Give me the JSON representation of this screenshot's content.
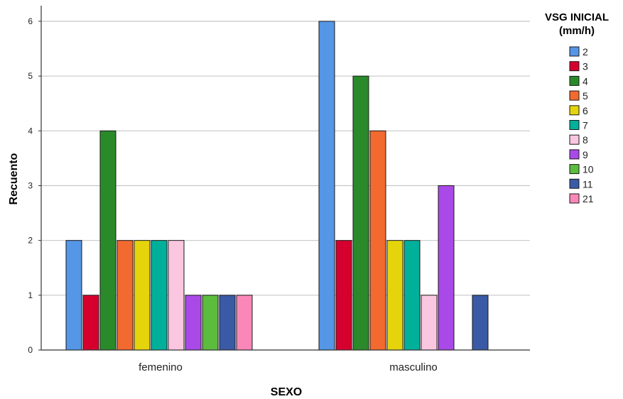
{
  "chart_data": {
    "type": "bar",
    "xlabel": "SEXO",
    "ylabel": "Recuento",
    "ylim": [
      0,
      6
    ],
    "yticks": [
      0,
      1,
      2,
      3,
      4,
      5,
      6
    ],
    "grid": true,
    "legend_title": [
      "VSG INICIAL",
      "(mm/h)"
    ],
    "legend_position": "right",
    "categories": [
      "femenino",
      "masculino"
    ],
    "series": [
      {
        "name": "2",
        "color": "#5596e6",
        "values": [
          2,
          6
        ]
      },
      {
        "name": "3",
        "color": "#d6002e",
        "values": [
          1,
          2
        ]
      },
      {
        "name": "4",
        "color": "#2a8a2a",
        "values": [
          4,
          5
        ]
      },
      {
        "name": "5",
        "color": "#f26a30",
        "values": [
          2,
          4
        ]
      },
      {
        "name": "6",
        "color": "#e5d40c",
        "values": [
          2,
          2
        ]
      },
      {
        "name": "7",
        "color": "#00b09b",
        "values": [
          2,
          2
        ]
      },
      {
        "name": "8",
        "color": "#fbc7e0",
        "values": [
          2,
          1
        ]
      },
      {
        "name": "9",
        "color": "#a94ae8",
        "values": [
          1,
          3
        ]
      },
      {
        "name": "10",
        "color": "#5cbc3e",
        "values": [
          1,
          0
        ]
      },
      {
        "name": "11",
        "color": "#3a5aa6",
        "values": [
          1,
          1
        ]
      },
      {
        "name": "21",
        "color": "#fb87b8",
        "values": [
          1,
          0
        ]
      }
    ]
  }
}
